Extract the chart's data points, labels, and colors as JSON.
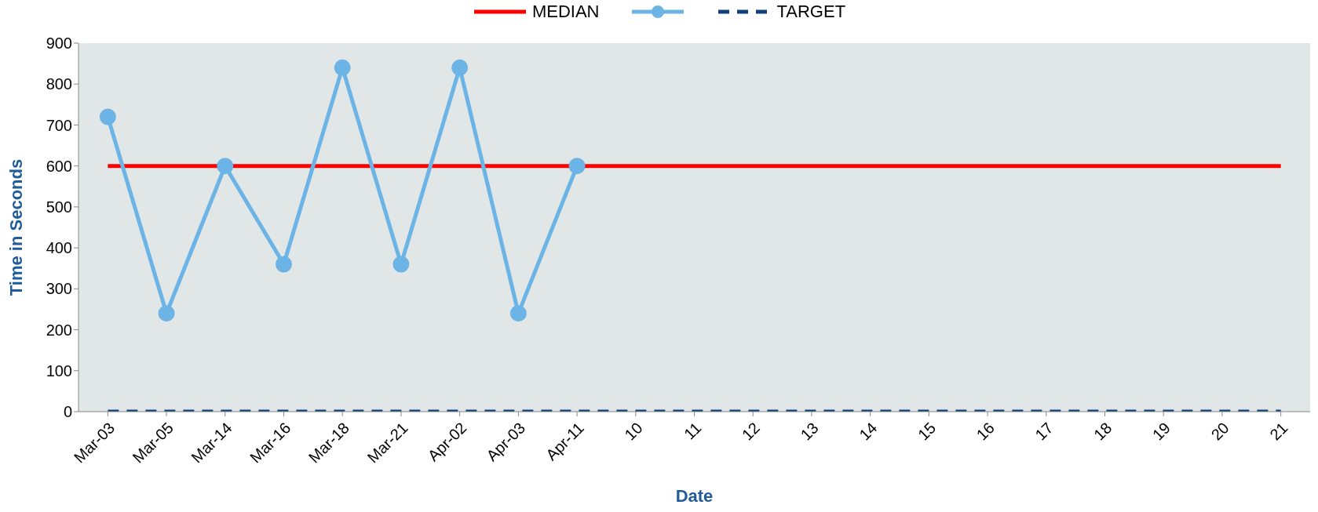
{
  "chart_data": {
    "type": "line",
    "xlabel": "Date",
    "ylabel": "Time in Seconds",
    "categories": [
      "Mar-03",
      "Mar-05",
      "Mar-14",
      "Mar-16",
      "Mar-18",
      "Mar-21",
      "Apr-02",
      "Apr-03",
      "Apr-11",
      "10",
      "11",
      "12",
      "13",
      "14",
      "15",
      "16",
      "17",
      "18",
      "19",
      "20",
      "21"
    ],
    "series": [
      {
        "name": "MEDIAN",
        "color": "#ff0000",
        "marker": "none",
        "line_style": "solid",
        "values": [
          600,
          600,
          600,
          600,
          600,
          600,
          600,
          600,
          600,
          600,
          600,
          600,
          600,
          600,
          600,
          600,
          600,
          600,
          600,
          600,
          600
        ]
      },
      {
        "color": "#6cb4e6",
        "marker": "circle",
        "line_style": "solid",
        "values": [
          720,
          240,
          600,
          360,
          840,
          360,
          840,
          240,
          600,
          null,
          null,
          null,
          null,
          null,
          null,
          null,
          null,
          null,
          null,
          null,
          null
        ]
      },
      {
        "name": "TARGET",
        "color": "#123f7d",
        "marker": "none",
        "line_style": "dashed",
        "values": [
          0,
          0,
          0,
          0,
          0,
          0,
          0,
          0,
          0,
          0,
          0,
          0,
          0,
          0,
          0,
          0,
          0,
          0,
          0,
          0,
          0
        ]
      }
    ],
    "ylim": [
      0,
      900
    ],
    "yticks": [
      0,
      100,
      200,
      300,
      400,
      500,
      600,
      700,
      800,
      900
    ],
    "grid": false,
    "legend": "top"
  }
}
